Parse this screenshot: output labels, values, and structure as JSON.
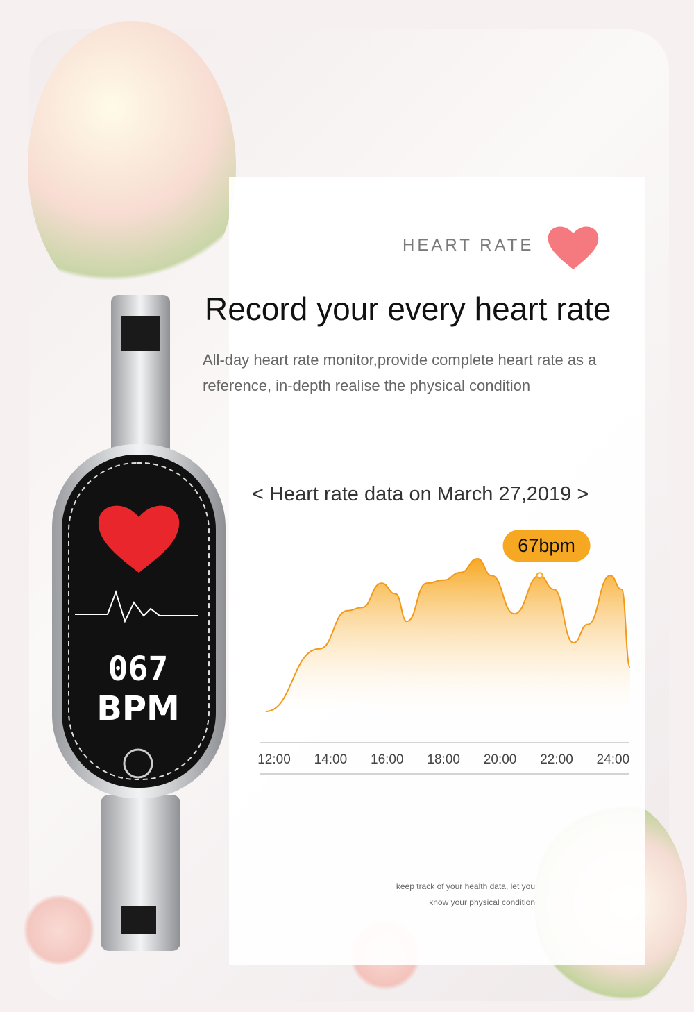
{
  "header": {
    "eyebrow": "HEART RATE",
    "title": "Record your every heart rate",
    "description": "All-day heart rate monitor,provide complete heart rate as a reference, in-depth realise the physical condition"
  },
  "watch": {
    "value": "067",
    "unit": "BPM"
  },
  "colors": {
    "accent": "#f7a823",
    "heart": "#f47a80",
    "watch_heart": "#e8262b"
  },
  "chart_data": {
    "type": "area",
    "title": "< Heart rate data on March 27,2019 >",
    "xlabel": "",
    "ylabel": "",
    "x_ticks": [
      "12:00",
      "14:00",
      "16:00",
      "18:00",
      "20:00",
      "22:00",
      "24:00"
    ],
    "x": [
      11.7,
      13.6,
      14.6,
      15.1,
      15.8,
      16.3,
      16.7,
      17.4,
      18.0,
      18.6,
      19.2,
      19.7,
      20.5,
      21.4,
      21.9,
      22.6,
      23.1,
      23.9,
      24.3,
      24.6
    ],
    "y": [
      0,
      41,
      66,
      68,
      84,
      77,
      59,
      84,
      86,
      91,
      100,
      89,
      64,
      89,
      80,
      45,
      57,
      89,
      80,
      29
    ],
    "annotation": {
      "label": "67bpm",
      "x": 21.4
    },
    "grid": false
  },
  "footer": {
    "line1": "keep track of your health data, let you",
    "line2": "know your physical condition"
  }
}
